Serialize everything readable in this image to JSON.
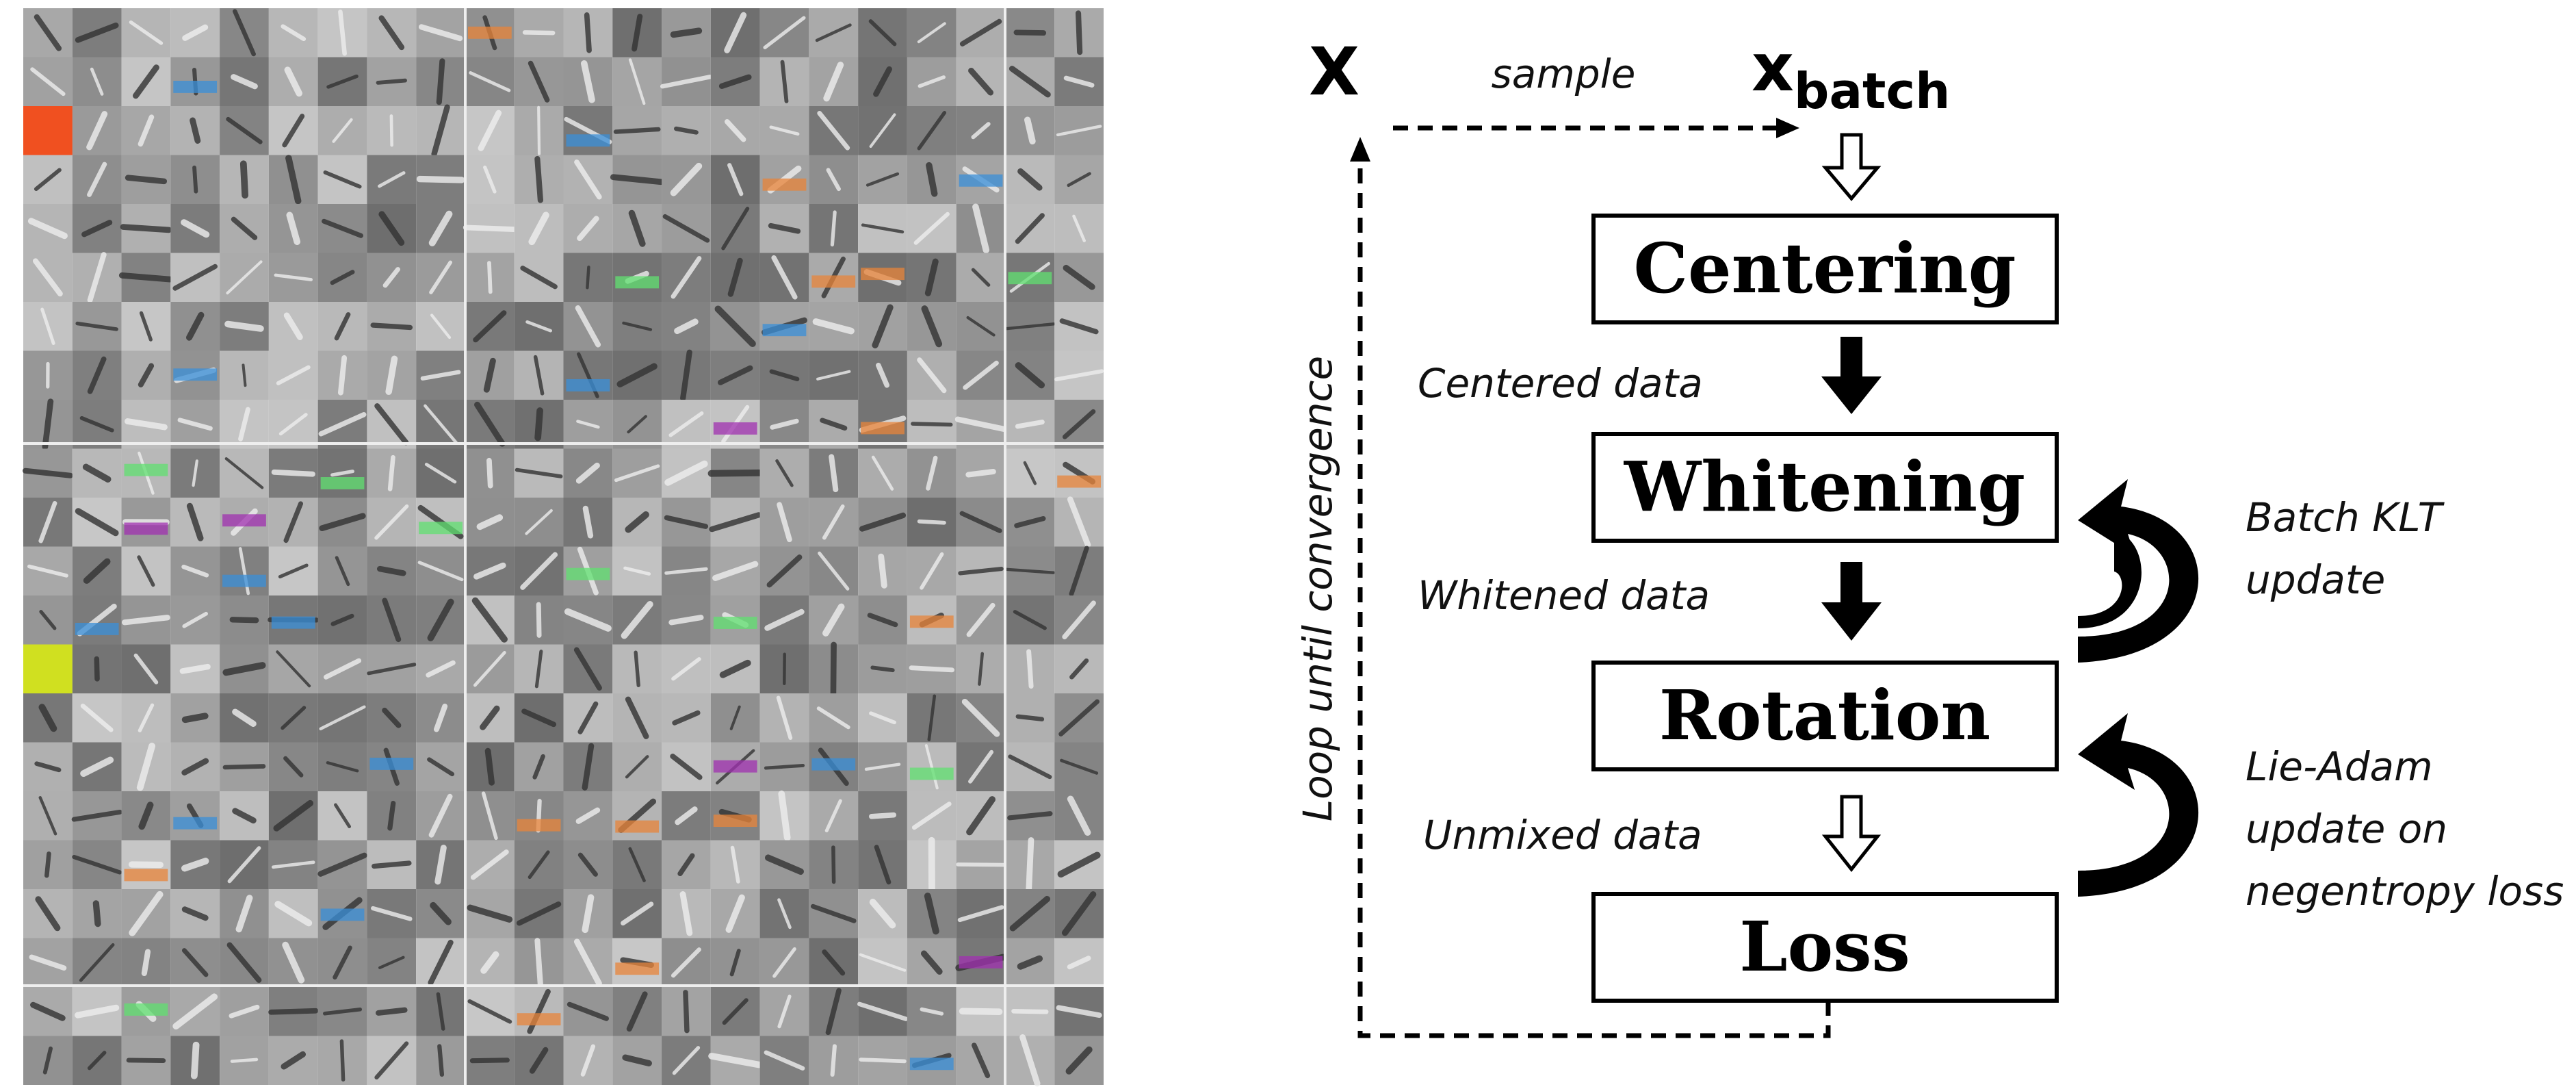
{
  "labels": {
    "x": "X",
    "sample": "sample",
    "x_batch": "x",
    "batch": "batch",
    "loop": "Loop until convergence"
  },
  "nodes": [
    {
      "label": "Centering"
    },
    {
      "label": "Whitening"
    },
    {
      "label": "Rotation"
    },
    {
      "label": "Loss"
    }
  ],
  "edges": [
    {
      "label": "Centered data"
    },
    {
      "label": "Whitened data"
    },
    {
      "label": "Unmixed data"
    }
  ],
  "updates": [
    {
      "lines": [
        "Batch KLT",
        "update"
      ]
    },
    {
      "lines": [
        "Lie-Adam",
        "update on",
        "negentropy loss"
      ]
    }
  ]
}
